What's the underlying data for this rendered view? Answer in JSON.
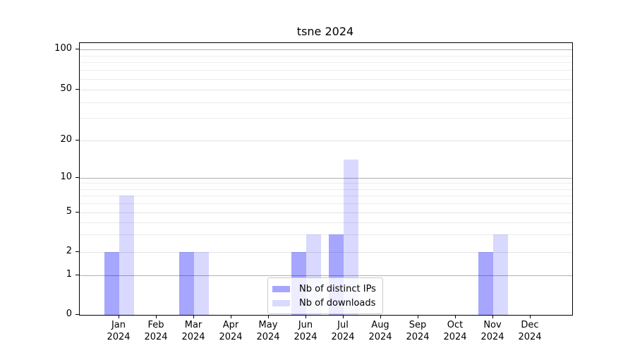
{
  "title": "tsne 2024",
  "chart_data": {
    "type": "bar",
    "title": "tsne 2024",
    "categories": [
      "Jan 2024",
      "Feb 2024",
      "Mar 2024",
      "Apr 2024",
      "May 2024",
      "Jun 2024",
      "Jul 2024",
      "Aug 2024",
      "Sep 2024",
      "Oct 2024",
      "Nov 2024",
      "Dec 2024"
    ],
    "series": [
      {
        "name": "Nb of distinct IPs",
        "color": "rgba(0,0,255,0.35)",
        "color_hex_on_white": "#a6a6ff",
        "values": [
          2,
          0,
          2,
          0,
          0,
          2,
          3,
          0,
          0,
          0,
          2,
          0
        ]
      },
      {
        "name": "Nb of downloads",
        "color": "rgba(0,0,255,0.15)",
        "color_hex_on_white": "#d9d9ff",
        "values": [
          7,
          0,
          2,
          0,
          0,
          3,
          14,
          0,
          0,
          0,
          3,
          0
        ]
      }
    ],
    "yscale": "symlog",
    "yticks": [
      0,
      1,
      2,
      5,
      10,
      20,
      50,
      100
    ],
    "major_gridline_values": [
      1,
      10,
      100
    ],
    "minor_gridline_values": [
      3,
      4,
      6,
      7,
      8,
      9,
      30,
      40,
      60,
      70,
      80,
      90
    ],
    "ylim": [
      0,
      120
    ],
    "grid": true,
    "legend_position": "lower center"
  }
}
